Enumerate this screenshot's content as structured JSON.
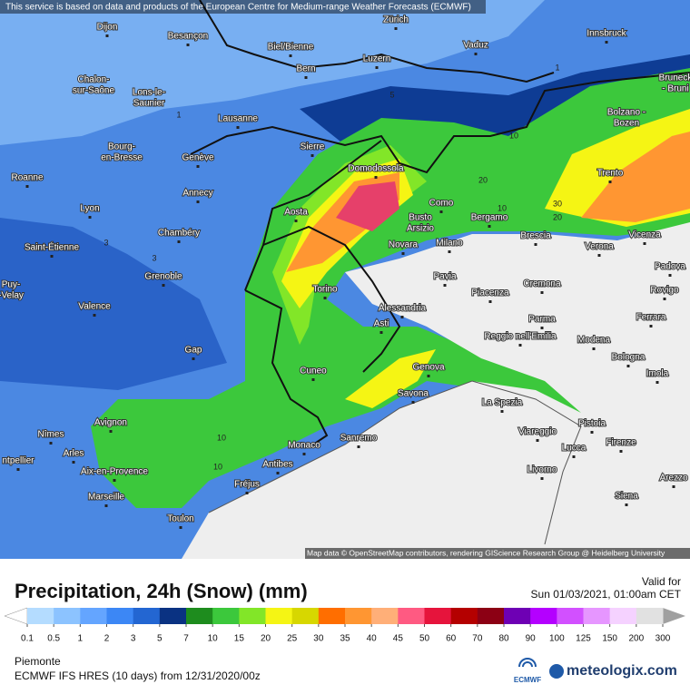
{
  "notice": "This service is based on data and products of the European Centre for Medium-range Weather Forecasts (ECMWF)",
  "attribution": "Map data © OpenStreetMap contributors, rendering GIScience Research Group @ Heidelberg University",
  "map": {
    "places": [
      [
        "Dijon"
      ],
      [
        "Besançon"
      ],
      [
        "Biel/Bienne"
      ],
      [
        "Zürich"
      ],
      [
        "Vaduz"
      ],
      [
        "Innsbruck"
      ],
      [
        "Bern"
      ],
      [
        "Luzern"
      ],
      [
        "Chalon-",
        "sur-Saône"
      ],
      [
        "Lons-le-",
        "Saunier"
      ],
      [
        "Lausanne"
      ],
      [
        "Bruneck",
        "- Bruni"
      ],
      [
        "Bolzano -",
        "Bozen"
      ],
      [
        "Sierre"
      ],
      [
        "Bourg-",
        "en-Bresse"
      ],
      [
        "Genève"
      ],
      [
        "Domodossola"
      ],
      [
        "Trento"
      ],
      [
        "Roanne"
      ],
      [
        "Annecy"
      ],
      [
        "Como"
      ],
      [
        "Lyon"
      ],
      [
        "Aosta"
      ],
      [
        "Busto",
        "Arsizio"
      ],
      [
        "Bergamo"
      ],
      [
        "Chambéry"
      ],
      [
        "Brescia"
      ],
      [
        "Vicenza"
      ],
      [
        "Saint-Étienne"
      ],
      [
        "Novara"
      ],
      [
        "Milano"
      ],
      [
        "Verona"
      ],
      [
        "Padova"
      ],
      [
        "Grenoble"
      ],
      [
        "Pavia"
      ],
      [
        "Cremona"
      ],
      [
        "Puy-",
        "-Velay"
      ],
      [
        "Torino"
      ],
      [
        "Piacenza"
      ],
      [
        "Rovigo"
      ],
      [
        "Valence"
      ],
      [
        "Alessandria"
      ],
      [
        "Parma"
      ],
      [
        "Ferrara"
      ],
      [
        "Asti"
      ],
      [
        "Reggio nell'Emilia"
      ],
      [
        "Modena"
      ],
      [
        "Gap"
      ],
      [
        "Bologna"
      ],
      [
        "Genova"
      ],
      [
        "Cuneo"
      ],
      [
        "Imola"
      ],
      [
        "Savona"
      ],
      [
        "La Spezia"
      ],
      [
        "Avignon"
      ],
      [
        "Pistoia"
      ],
      [
        "Viareggio"
      ],
      [
        "Nîmes"
      ],
      [
        "Sanremo"
      ],
      [
        "Monaco"
      ],
      [
        "Firenze"
      ],
      [
        "Lucca"
      ],
      [
        "Arles"
      ],
      [
        "Antibes"
      ],
      [
        "ntpellier"
      ],
      [
        "Aix-en-Provence"
      ],
      [
        "Livorno"
      ],
      [
        "Arezzo"
      ],
      [
        "Fréjus"
      ],
      [
        "Marseille"
      ],
      [
        "Siena"
      ],
      [
        "Toulon"
      ]
    ],
    "contour_labels": [
      "1",
      "1",
      "5",
      "10",
      "20",
      "30",
      "20",
      "10",
      "10",
      "10",
      "3",
      "3"
    ]
  },
  "legend": {
    "title": "Precipitation, 24h (Snow) (mm)",
    "valid_label": "Valid for",
    "valid_time": "Sun 01/03/2021, 01:00am CET",
    "ticks": [
      0.1,
      0.5,
      1,
      2,
      3,
      5,
      7,
      10,
      15,
      20,
      25,
      30,
      35,
      40,
      45,
      50,
      60,
      70,
      80,
      90,
      100,
      125,
      150,
      200,
      300
    ],
    "below_color": "#ffffff",
    "above_color": "#a0a0a0",
    "colors": [
      "#b4dcff",
      "#8cc3ff",
      "#64a5ff",
      "#3c87f5",
      "#2366d2",
      "#0a3282",
      "#1e8c1e",
      "#3cc83c",
      "#82e628",
      "#f5f514",
      "#d7d700",
      "#ff6e00",
      "#ff9632",
      "#ffaf78",
      "#ff5a82",
      "#e6143c",
      "#b40000",
      "#8c0014",
      "#6e00b4",
      "#b400ff",
      "#d250ff",
      "#e696ff",
      "#f5d2ff",
      "#e1e1e1"
    ]
  },
  "footer": {
    "region": "Piemonte",
    "model": "ECMWF IFS HRES (10 days) from 12/31/2020/00z",
    "ecmwf_logo": "ECMWF",
    "brand": "meteologix.com"
  }
}
